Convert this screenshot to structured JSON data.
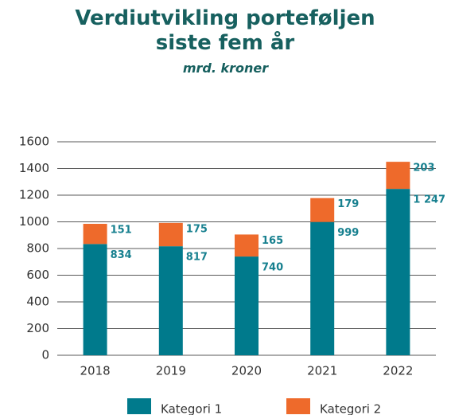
{
  "chart_data": {
    "type": "stacked_bar",
    "title": "Verdiutvikling porteføljen siste fem år",
    "subtitle": "mrd. kroner",
    "categories": [
      "2018",
      "2019",
      "2020",
      "2021",
      "2022"
    ],
    "series": [
      {
        "name": "Kategori 1",
        "color": "#007a8c",
        "values": [
          834,
          817,
          740,
          999,
          1247
        ],
        "value_labels": [
          "834",
          "817",
          "740",
          "999",
          "1 247"
        ]
      },
      {
        "name": "Kategori 2",
        "color": "#ee6a2b",
        "values": [
          151,
          175,
          165,
          179,
          203
        ]
      }
    ],
    "ylim": [
      0,
      1600
    ],
    "yticks": [
      0,
      200,
      400,
      600,
      800,
      1000,
      1200,
      1400,
      1600
    ],
    "grid": true
  }
}
